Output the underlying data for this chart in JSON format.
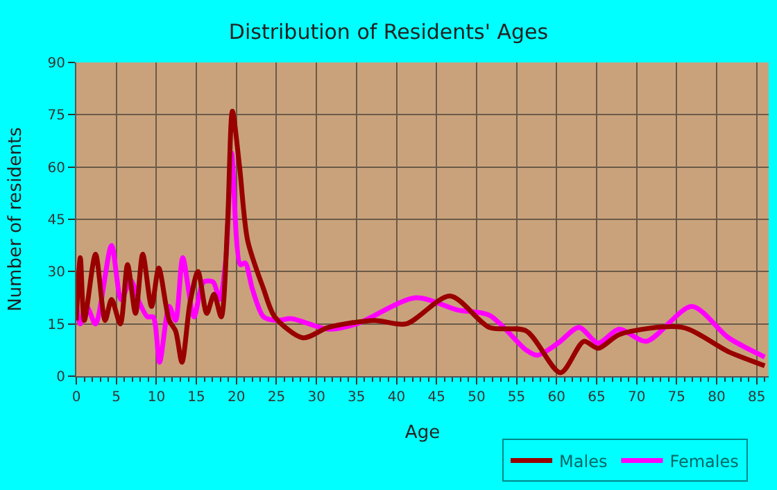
{
  "chart_data": {
    "type": "line",
    "title": "Distribution of Residents' Ages",
    "xlabel": "Age",
    "ylabel": "Number of residents",
    "xlim": [
      0,
      86.5
    ],
    "ylim": [
      0,
      90
    ],
    "xticks": [
      0,
      5,
      10,
      15,
      20,
      25,
      30,
      35,
      40,
      45,
      50,
      55,
      60,
      65,
      70,
      75,
      80,
      85
    ],
    "yticks": [
      0,
      15,
      30,
      45,
      60,
      75,
      90
    ],
    "grid": true,
    "legend": "bottom",
    "marker": "none",
    "line_style": "solid",
    "series": [
      {
        "name": "Males",
        "color": "#990000",
        "x": [
          0,
          0.5,
          1,
          2.4,
          3.6,
          4.4,
          5.5,
          6.4,
          7.4,
          8.3,
          9.4,
          10.3,
          11.6,
          12.4,
          13.2,
          14.2,
          15.2,
          16.3,
          17.2,
          18.1,
          18.9,
          19.5,
          20.4,
          21.4,
          23.4,
          24.8,
          28.3,
          31.5,
          37.2,
          41.2,
          46.7,
          51.6,
          56.2,
          60.5,
          63.4,
          65.2,
          67.9,
          75.7,
          81.5,
          86
        ],
        "values": [
          16,
          34,
          16,
          35,
          16,
          22,
          15,
          32,
          18,
          35,
          20,
          31,
          16,
          13,
          4,
          21,
          30,
          18,
          23.5,
          17,
          44,
          76,
          60,
          39,
          25,
          17,
          11,
          14,
          16,
          15,
          23,
          14,
          13,
          1,
          10,
          8,
          12,
          14,
          7,
          3
        ]
      },
      {
        "name": "Females",
        "color": "#ff00ff",
        "x": [
          0,
          0.5,
          1.3,
          2.4,
          4.4,
          5.6,
          6.8,
          7.9,
          8.9,
          9.6,
          10.4,
          11.6,
          12.4,
          13.3,
          14.7,
          15.9,
          17.1,
          17.9,
          18.7,
          19.4,
          20.5,
          21.1,
          22,
          23.4,
          25.1,
          26.9,
          31.5,
          35,
          42.4,
          47.6,
          51.6,
          56.2,
          57.6,
          60.2,
          62.8,
          65.2,
          67.8,
          71.2,
          76.9,
          81.5,
          86
        ],
        "values": [
          21,
          15,
          20,
          15,
          37.5,
          22,
          27.5,
          21,
          17,
          17,
          4,
          20,
          16,
          34,
          17,
          27,
          27,
          22,
          34,
          64,
          32,
          32.5,
          25,
          17,
          16,
          16.5,
          13.5,
          15,
          22.5,
          19,
          17.5,
          7.5,
          6,
          9.5,
          14,
          9.5,
          13.5,
          10,
          20,
          11,
          5.5
        ]
      }
    ]
  }
}
